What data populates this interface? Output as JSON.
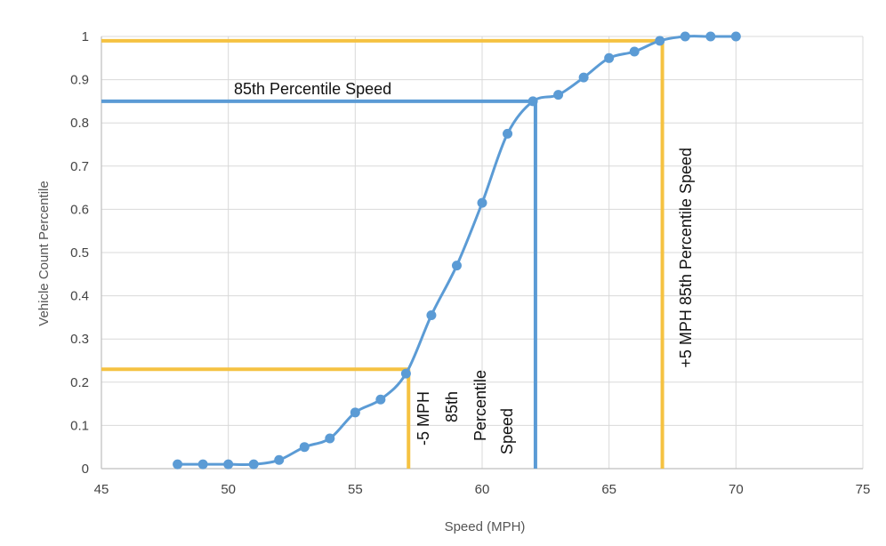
{
  "chart_data": {
    "type": "line",
    "xlabel": "Speed (MPH)",
    "ylabel": "Vehicle Count Percentile",
    "xlim": [
      45,
      75
    ],
    "ylim": [
      0,
      1
    ],
    "x_ticks": [
      45,
      50,
      55,
      60,
      65,
      70,
      75
    ],
    "y_ticks": [
      0,
      0.1,
      0.2,
      0.3,
      0.4,
      0.5,
      0.6,
      0.7,
      0.8,
      0.9,
      1
    ],
    "grid": true,
    "legend": "none",
    "colors": {
      "series": "#5b9bd5",
      "percentile_85_line": "#5b9bd5",
      "offset_lines": "#f5c242",
      "grid": "#d9d9d9",
      "axis": "#bfbfbf"
    },
    "series": [
      {
        "x": [
          48,
          49,
          50,
          51,
          52,
          53,
          54,
          55,
          56,
          57,
          58,
          59,
          60,
          61,
          62,
          63,
          64,
          65,
          66,
          67,
          68,
          69,
          70
        ],
        "y": [
          0.01,
          0.01,
          0.01,
          0.01,
          0.02,
          0.05,
          0.07,
          0.13,
          0.16,
          0.22,
          0.355,
          0.47,
          0.615,
          0.775,
          0.85,
          0.865,
          0.905,
          0.95,
          0.965,
          0.99,
          1.0,
          1.0,
          1.0
        ]
      }
    ],
    "reference_lines": [
      {
        "kind": "horizontal",
        "y": 0.85,
        "x_from": 45,
        "x_to": 62.1,
        "color": "#5b9bd5"
      },
      {
        "kind": "vertical",
        "x": 62.1,
        "y_from": 0,
        "y_to": 0.85,
        "color": "#5b9bd5"
      },
      {
        "kind": "horizontal",
        "y": 0.23,
        "x_from": 45,
        "x_to": 57.1,
        "color": "#f5c242"
      },
      {
        "kind": "vertical",
        "x": 57.1,
        "y_from": 0,
        "y_to": 0.23,
        "color": "#f5c242"
      },
      {
        "kind": "horizontal",
        "y": 0.99,
        "x_from": 45,
        "x_to": 67.1,
        "color": "#f5c242"
      },
      {
        "kind": "vertical",
        "x": 67.1,
        "y_from": 0,
        "y_to": 0.99,
        "color": "#f5c242"
      }
    ],
    "annotations": {
      "p85_label": "85th Percentile Speed",
      "minus5_label": "-5 MPH",
      "p85_vertical_lines": [
        "85th",
        "Percentile",
        "Speed"
      ],
      "plus5_label": "+5 MPH 85th Percentile Speed"
    }
  }
}
